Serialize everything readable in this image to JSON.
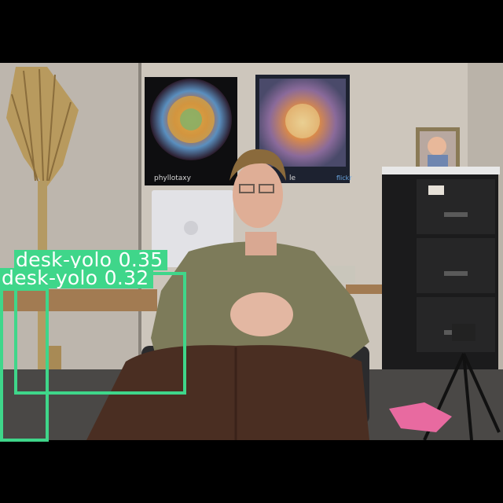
{
  "image": {
    "subject": "man seated in office chair",
    "posters": [
      {
        "name": "phyllotaxy-poster",
        "caption": "phyllotaxy"
      },
      {
        "name": "mosaic-poster",
        "caption": "le"
      }
    ]
  },
  "detections": [
    {
      "label": "desk-yolo 0.35",
      "color": "#3fd68a"
    },
    {
      "label": "desk-yolo 0.32",
      "color": "#3fd68a"
    }
  ]
}
